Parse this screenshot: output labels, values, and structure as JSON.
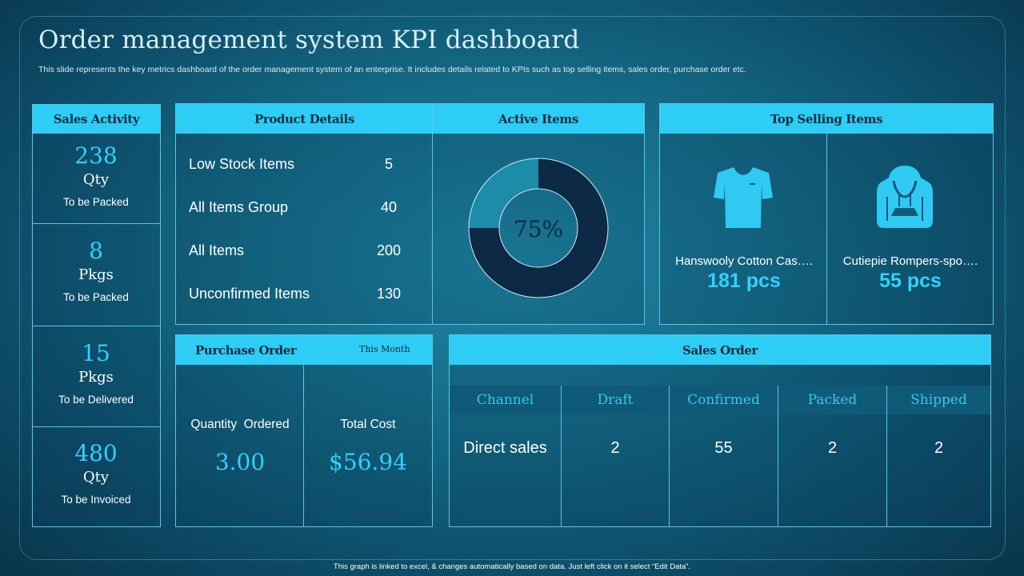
{
  "title": "Order management system KPI dashboard",
  "subtitle": "This slide represents the key metrics dashboard of the order management system of an enterprise. It includes details related to KPIs such as top selling items, sales order, purchase order etc.",
  "footer": "This graph is linked to excel, & changes automatically based on data. Just left click on it select “Edit Data”.",
  "colors": {
    "accent": "#2ecdf5",
    "value": "#33d0fb",
    "donut_dark": "#0c2a45",
    "donut_light": "#1c8ca8"
  },
  "sales_activity": {
    "header": "Sales Activity",
    "items": [
      {
        "value": "238",
        "unit": "Qty",
        "caption": "To be Packed"
      },
      {
        "value": "8",
        "unit": "Pkgs",
        "caption": "To be Packed"
      },
      {
        "value": "15",
        "unit": "Pkgs",
        "caption": "To be Delivered"
      },
      {
        "value": "480",
        "unit": "Qty",
        "caption": "To be Invoiced"
      }
    ]
  },
  "product_details": {
    "header": "Product Details",
    "rows": [
      {
        "label": "Low Stock Items",
        "value": "5"
      },
      {
        "label": "All Items Group",
        "value": "40"
      },
      {
        "label": "All Items",
        "value": "200"
      },
      {
        "label": "Unconfirmed Items",
        "value": "130"
      }
    ]
  },
  "active_items": {
    "header": "Active Items",
    "label": "75%",
    "fraction": 0.75
  },
  "top_selling": {
    "header": "Top Selling Items",
    "items": [
      {
        "icon": "tshirt-icon",
        "name": "Hanswooly Cotton Cas….",
        "qty": "181 pcs"
      },
      {
        "icon": "hoodie-icon",
        "name": "Cutiepie Rompers-spo….",
        "qty": "55 pcs"
      }
    ]
  },
  "purchase_order": {
    "header": "Purchase Order",
    "period": "This Month",
    "quantity_label": "Quantity  Ordered",
    "quantity_value": "3.00",
    "cost_label": "Total Cost",
    "cost_value": "$56.94"
  },
  "sales_order": {
    "header": "Sales Order",
    "columns": [
      "Channel",
      "Draft",
      "Confirmed",
      "Packed",
      "Shipped"
    ],
    "rows": [
      [
        "Direct sales",
        "2",
        "55",
        "2",
        "2"
      ]
    ]
  }
}
